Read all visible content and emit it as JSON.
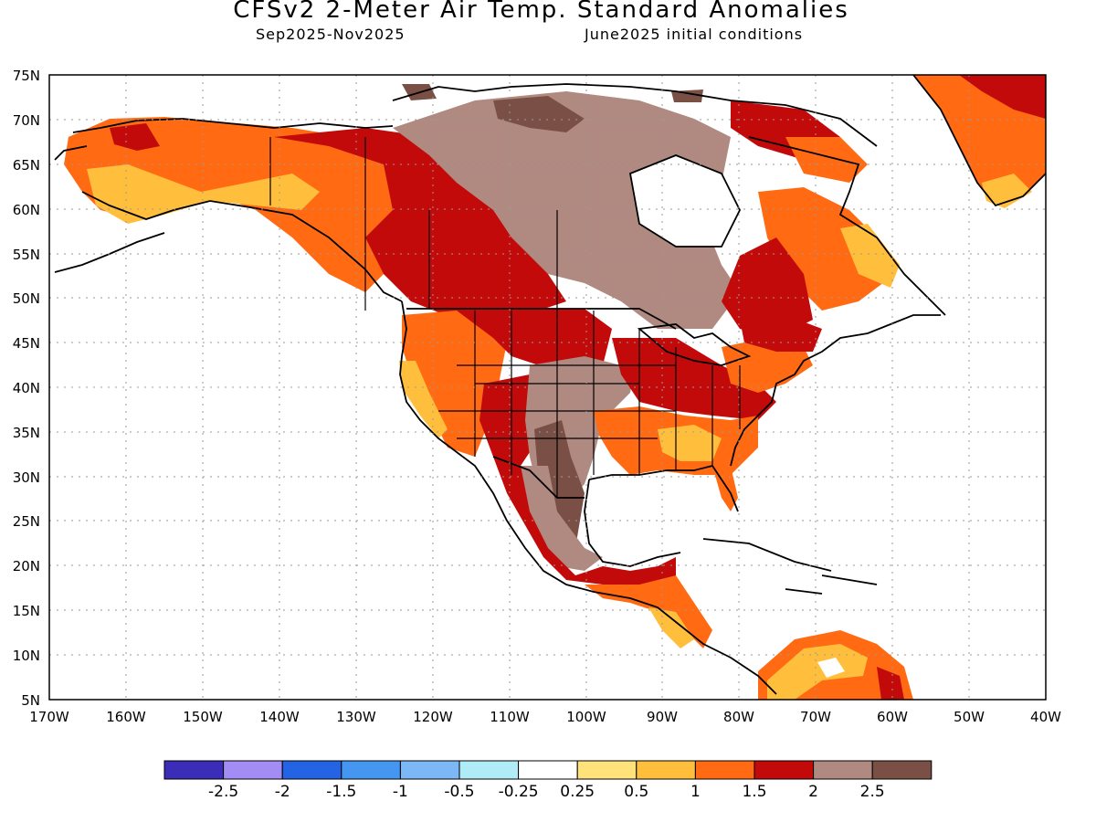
{
  "title": "CFSv2 2-Meter Air Temp. Standard Anomalies",
  "period": "Sep2025-Nov2025",
  "init": "June2025 initial conditions",
  "lat_labels": [
    "75N",
    "70N",
    "65N",
    "60N",
    "55N",
    "50N",
    "45N",
    "40N",
    "35N",
    "30N",
    "25N",
    "20N",
    "15N",
    "10N",
    "5N"
  ],
  "lon_labels": [
    "170W",
    "160W",
    "150W",
    "140W",
    "130W",
    "120W",
    "110W",
    "100W",
    "90W",
    "80W",
    "70W",
    "60W",
    "50W",
    "40W"
  ],
  "colorbar": {
    "colors": [
      "#3c2db8",
      "#a48cf5",
      "#2463e3",
      "#4596f0",
      "#7cb8f5",
      "#b0ecf8",
      "#ffffff",
      "#ffe27a",
      "#ffbf3c",
      "#ff6a12",
      "#c20a0a",
      "#b08a80",
      "#7a5046"
    ],
    "labels": [
      "-2.5",
      "-2",
      "-1.5",
      "-1",
      "-0.5",
      "-0.25",
      "0.25",
      "0.5",
      "1",
      "1.5",
      "2",
      "2.5"
    ]
  }
}
